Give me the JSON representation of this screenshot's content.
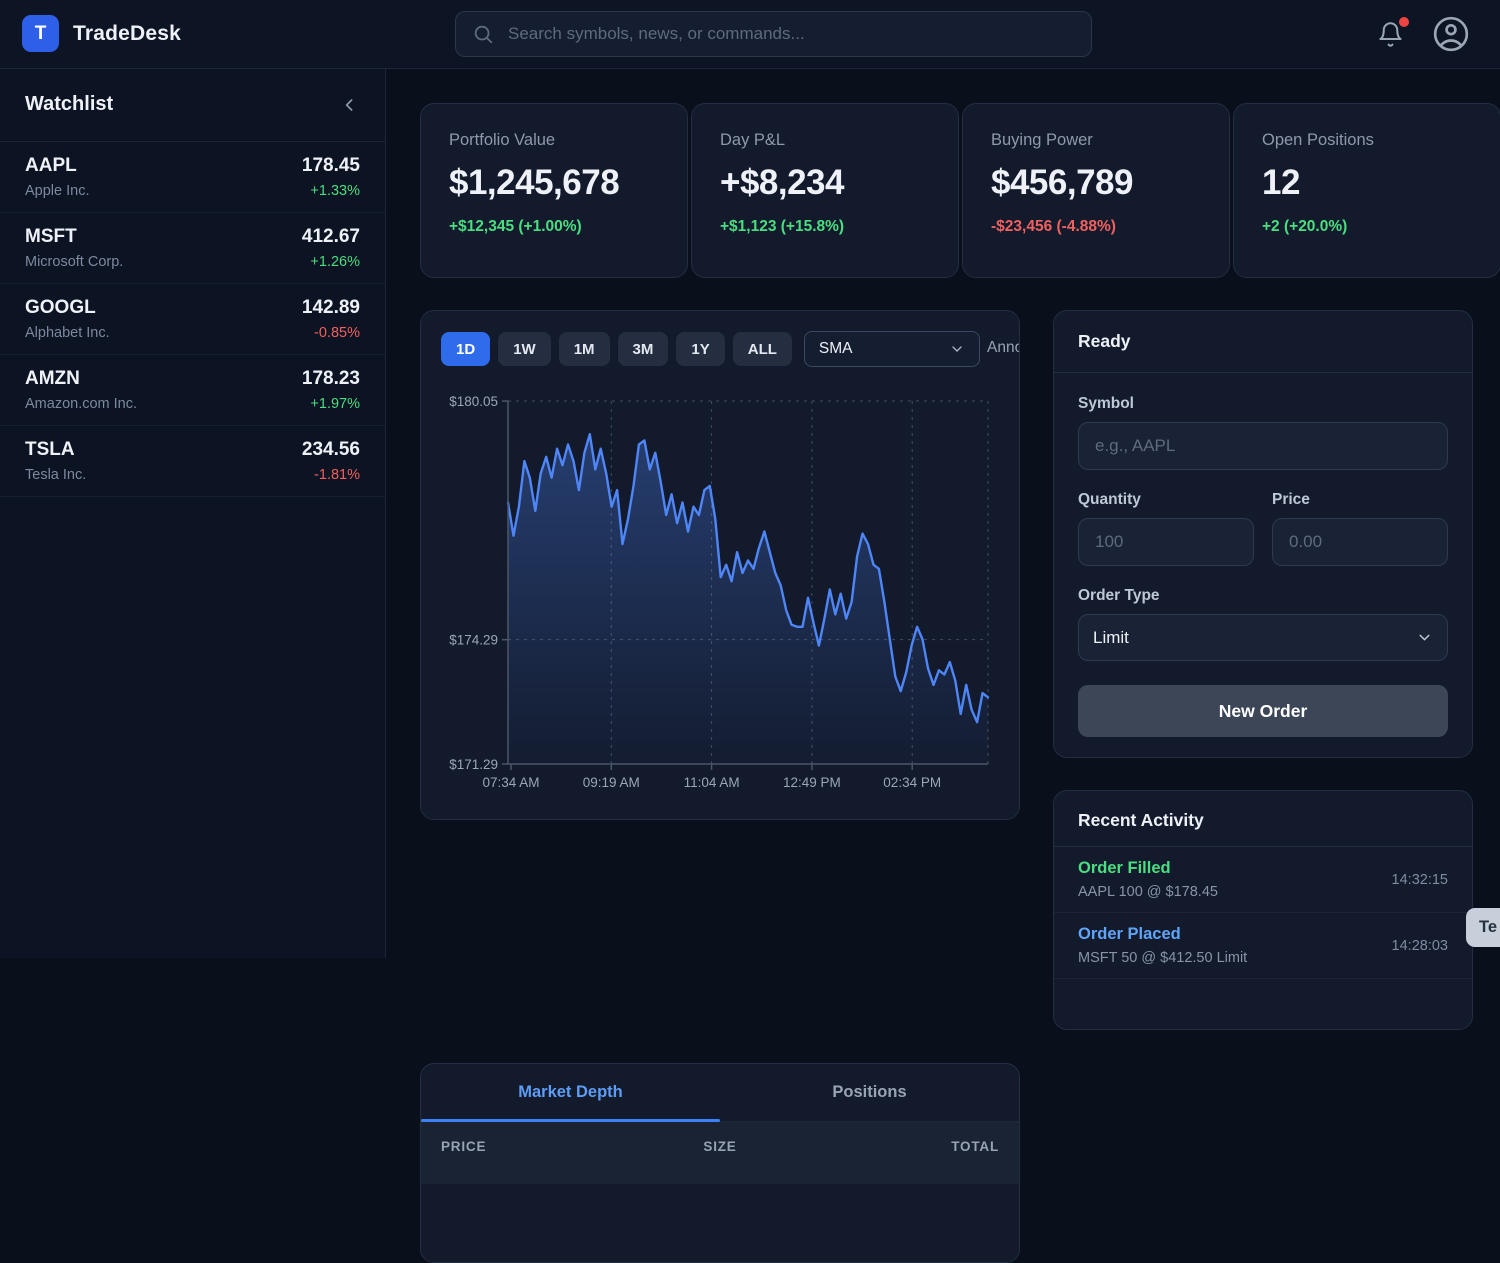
{
  "app": {
    "name": "TradeDesk",
    "logo_letter": "T"
  },
  "nav": {
    "search_placeholder": "Search symbols, news, or commands...",
    "icons": {
      "search": "magnifier",
      "notifications": "bell-with-red-dot",
      "profile": "person-circle"
    }
  },
  "watchlist": {
    "title": "Watchlist",
    "collapse_icon": "chevron-left",
    "items": [
      {
        "symbol": "AAPL",
        "name": "Apple Inc.",
        "price": "178.45",
        "change": "+1.33%",
        "direction": "up"
      },
      {
        "symbol": "MSFT",
        "name": "Microsoft Corp.",
        "price": "412.67",
        "change": "+1.26%",
        "direction": "up"
      },
      {
        "symbol": "GOOGL",
        "name": "Alphabet Inc.",
        "price": "142.89",
        "change": "-0.85%",
        "direction": "down"
      },
      {
        "symbol": "AMZN",
        "name": "Amazon.com Inc.",
        "price": "178.23",
        "change": "+1.97%",
        "direction": "up"
      },
      {
        "symbol": "TSLA",
        "name": "Tesla Inc.",
        "price": "234.56",
        "change": "-1.81%",
        "direction": "down"
      }
    ]
  },
  "stats": [
    {
      "label": "Portfolio Value",
      "value": "$1,245,678",
      "change": "+$12,345 (+1.00%)",
      "direction": "up"
    },
    {
      "label": "Day P&L",
      "value": "+$8,234",
      "change": "+$1,123 (+15.8%)",
      "direction": "up"
    },
    {
      "label": "Buying Power",
      "value": "$456,789",
      "change": "-$23,456 (-4.88%)",
      "direction": "down"
    },
    {
      "label": "Open Positions",
      "value": "12",
      "change": "+2 (+20.0%)",
      "direction": "up"
    }
  ],
  "chart_panel": {
    "timeframes": [
      "1D",
      "1W",
      "1M",
      "3M",
      "1Y",
      "ALL"
    ],
    "active_timeframe": "1D",
    "indicator_value": "SMA",
    "annotations_label": "Annotations"
  },
  "chart_data": {
    "type": "area",
    "series": [
      {
        "name": "Intraday price",
        "values": [
          177.6,
          176.8,
          177.5,
          178.6,
          178.2,
          177.4,
          178.3,
          178.7,
          178.2,
          178.9,
          178.5,
          179.0,
          178.6,
          177.9,
          178.8,
          179.25,
          178.4,
          178.9,
          178.3,
          177.5,
          177.9,
          176.6,
          177.2,
          178.0,
          179.0,
          179.1,
          178.4,
          178.8,
          178.1,
          177.3,
          177.8,
          177.1,
          177.6,
          176.9,
          177.5,
          177.3,
          177.9,
          178.0,
          177.2,
          175.8,
          176.1,
          175.7,
          176.4,
          175.9,
          176.2,
          176.0,
          176.5,
          176.9,
          176.4,
          175.9,
          175.6,
          175.0,
          174.65,
          174.6,
          174.6,
          175.3,
          174.7,
          174.15,
          174.8,
          175.5,
          174.9,
          175.4,
          174.8,
          175.2,
          176.3,
          176.85,
          176.6,
          176.1,
          176.0,
          175.2,
          174.3,
          173.4,
          173.05,
          173.5,
          174.15,
          174.6,
          174.3,
          173.6,
          173.2,
          173.55,
          173.45,
          173.75,
          173.3,
          172.5,
          173.2,
          172.6,
          172.3,
          173.0,
          172.9
        ]
      }
    ],
    "x_ticks": [
      "07:34 AM",
      "09:19 AM",
      "11:04 AM",
      "12:49 PM",
      "02:34 PM"
    ],
    "y_ticks": [
      {
        "label": "$180.05",
        "value": 180.05
      },
      {
        "label": "$174.29",
        "value": 174.29
      },
      {
        "label": "$171.29",
        "value": 171.29
      }
    ],
    "ylim": [
      171.29,
      180.05
    ],
    "grid": "dashed",
    "legend": "none",
    "line_color": "#4f86f7"
  },
  "order_form": {
    "status": "Ready",
    "symbol_label": "Symbol",
    "symbol_placeholder": "e.g., AAPL",
    "quantity_label": "Quantity",
    "quantity_placeholder": "100",
    "price_label": "Price",
    "price_placeholder": "0.00",
    "order_type_label": "Order Type",
    "order_type_value": "Limit",
    "submit_label": "New Order"
  },
  "recent_activity": {
    "title": "Recent Activity",
    "items": [
      {
        "title": "Order Filled",
        "detail": "AAPL 100 @ $178.45",
        "time": "14:32:15",
        "status_color": "#4ade80"
      },
      {
        "title": "Order Placed",
        "detail": "MSFT 50 @ $412.50 Limit",
        "time": "14:28:03",
        "status_color": "#60a5fa"
      }
    ]
  },
  "bottom_panel": {
    "tabs": [
      {
        "label": "Market Depth",
        "active": true
      },
      {
        "label": "Positions",
        "active": false
      }
    ],
    "columns": [
      "PRICE",
      "SIZE",
      "TOTAL"
    ]
  },
  "toast": {
    "text": "Te"
  },
  "colors": {
    "accent_blue": "#2f6ceb",
    "chart_line": "#4f86f7",
    "positive_green": "#4ade80",
    "negative_red": "#f0615f",
    "activity_blue": "#60a5fa",
    "notification_red": "#ef4444"
  }
}
